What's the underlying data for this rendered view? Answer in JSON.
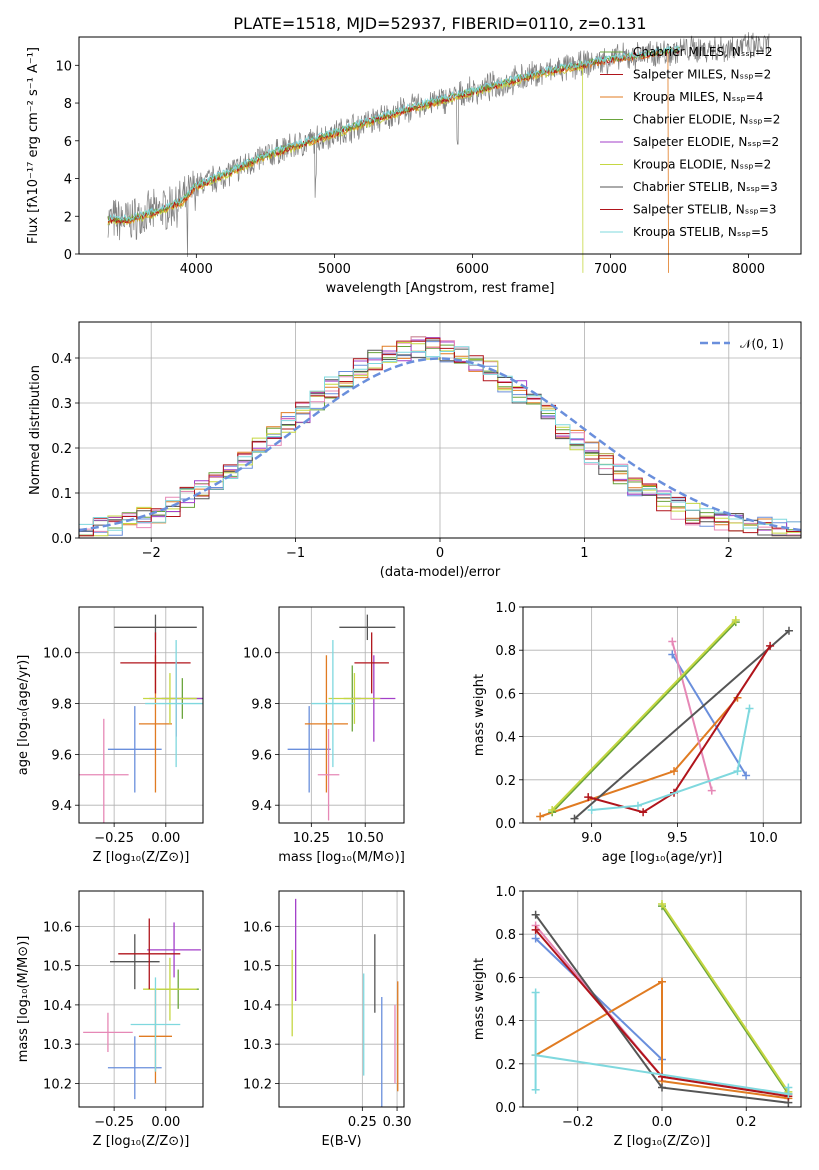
{
  "colors": {
    "blue": "#6a8fdc",
    "orange": "#e07b22",
    "green": "#6aa43c",
    "purple": "#a33fc9",
    "pink": "#e688b6",
    "yellowgreen": "#c5d742",
    "dark": "#555555",
    "red": "#b0141b",
    "cyan": "#7fd8de",
    "gray": "#808080",
    "grid": "#b0b0b0"
  },
  "chart_data": [
    {
      "id": "spectrum",
      "type": "line",
      "title": "PLATE=1518, MJD=52937, FIBERID=0110, z=0.131",
      "xlabel": "wavelength [Angstrom, rest frame]",
      "ylabel": "Flux [fλ10⁻¹⁷ erg cm⁻² s⁻¹ A⁻¹]",
      "xlim": [
        3150,
        8380
      ],
      "ylim": [
        0,
        11.5
      ],
      "xticks": [
        "4000",
        "5000",
        "6000",
        "7000",
        "8000"
      ],
      "yticks": [
        "0",
        "2",
        "4",
        "6",
        "8",
        "10"
      ],
      "legend": [
        "Chabrier MILES, Nₛₛₚ=2",
        "Salpeter MILES, Nₛₛₚ=2",
        "Kroupa MILES, Nₛₛₚ=4",
        "Chabrier ELODIE, Nₛₛₚ=2",
        "Salpeter ELODIE, Nₛₛₚ=2",
        "Kroupa ELODIE, Nₛₛₚ=2",
        "Chabrier STELIB, Nₛₛₚ=3",
        "Salpeter STELIB, Nₛₛₚ=3",
        "Kroupa STELIB, Nₛₛₚ=5"
      ],
      "continuum": {
        "x": [
          3360,
          3500,
          3700,
          3900,
          4000,
          4200,
          4500,
          5000,
          5500,
          6000,
          6500,
          7000,
          7500,
          8000,
          8150
        ],
        "y": [
          1.8,
          1.8,
          2.2,
          2.8,
          3.6,
          4.2,
          5.2,
          6.4,
          7.6,
          8.6,
          9.6,
          10.3,
          10.8,
          11.0,
          11.0
        ]
      }
    },
    {
      "id": "residuals",
      "type": "histogram",
      "xlabel": "(data-model)/error",
      "ylabel": "Normed distribution",
      "xlim": [
        -2.5,
        2.5
      ],
      "ylim": [
        0,
        0.48
      ],
      "xticks": [
        "−2",
        "−1",
        "0",
        "1",
        "2"
      ],
      "yticks": [
        "0.0",
        "0.1",
        "0.2",
        "0.3",
        "0.4"
      ],
      "legend": [
        "𝒩(0, 1)"
      ],
      "bin_width": 0.1
    },
    {
      "id": "z-age",
      "type": "scatter",
      "xlabel": "Z [log₁₀(Z/Z⊙)]",
      "ylabel": "age  [log₁₀(age/yr)]",
      "xlim": [
        -0.42,
        0.18
      ],
      "ylim": [
        9.33,
        10.18
      ],
      "xticks": [
        "−0.25",
        "0.00"
      ],
      "yticks": [
        "9.4",
        "9.6",
        "9.8",
        "10.0"
      ],
      "points": [
        {
          "c": "blue",
          "x": -0.15,
          "y": 9.62,
          "xe": 0.13,
          "ye": 0.17
        },
        {
          "c": "orange",
          "x": -0.05,
          "y": 9.72,
          "xe": 0.08,
          "ye": 0.27
        },
        {
          "c": "green",
          "x": 0.08,
          "y": 9.82,
          "xe": 0.1,
          "ye": 0.08
        },
        {
          "c": "purple",
          "x": 0.05,
          "y": 9.82,
          "xe": 0.13,
          "ye": 0.15
        },
        {
          "c": "pink",
          "x": -0.3,
          "y": 9.52,
          "xe": 0.12,
          "ye": 0.22
        },
        {
          "c": "yellowgreen",
          "x": 0.02,
          "y": 9.82,
          "xe": 0.13,
          "ye": 0.1
        },
        {
          "c": "dark",
          "x": -0.05,
          "y": 10.1,
          "xe": 0.2,
          "ye": 0.05
        },
        {
          "c": "red",
          "x": -0.05,
          "y": 9.96,
          "xe": 0.17,
          "ye": 0.12
        },
        {
          "c": "cyan",
          "x": 0.05,
          "y": 9.8,
          "xe": 0.15,
          "ye": 0.25
        }
      ]
    },
    {
      "id": "mass-age",
      "type": "scatter",
      "xlabel": "mass [log₁₀(M/M⊙)]",
      "ylabel": "",
      "xlim": [
        10.1,
        10.68
      ],
      "ylim": [
        9.33,
        10.18
      ],
      "xticks": [
        "10.25",
        "10.50"
      ],
      "yticks": [
        "9.4",
        "9.6",
        "9.8",
        "10.0"
      ],
      "points": [
        {
          "c": "blue",
          "x": 10.24,
          "y": 9.62,
          "xe": 0.1,
          "ye": 0.17
        },
        {
          "c": "orange",
          "x": 10.32,
          "y": 9.72,
          "xe": 0.1,
          "ye": 0.27
        },
        {
          "c": "green",
          "x": 10.44,
          "y": 9.82,
          "xe": 0.04,
          "ye": 0.13
        },
        {
          "c": "purple",
          "x": 10.54,
          "y": 9.82,
          "xe": 0.1,
          "ye": 0.17
        },
        {
          "c": "pink",
          "x": 10.33,
          "y": 9.52,
          "xe": 0.05,
          "ye": 0.18
        },
        {
          "c": "yellowgreen",
          "x": 10.45,
          "y": 9.82,
          "xe": 0.12,
          "ye": 0.1
        },
        {
          "c": "dark",
          "x": 10.51,
          "y": 10.1,
          "xe": 0.13,
          "ye": 0.05
        },
        {
          "c": "red",
          "x": 10.53,
          "y": 9.96,
          "xe": 0.08,
          "ye": 0.12
        },
        {
          "c": "cyan",
          "x": 10.35,
          "y": 9.8,
          "xe": 0.1,
          "ye": 0.25
        }
      ]
    },
    {
      "id": "age-weight",
      "type": "line",
      "xlabel": "age  [log₁₀(age/yr)]",
      "ylabel": "mass weight",
      "xlim": [
        8.6,
        10.22
      ],
      "ylim": [
        0,
        1.0
      ],
      "xticks": [
        "9.0",
        "9.5",
        "10.0"
      ],
      "yticks": [
        "0.0",
        "0.2",
        "0.4",
        "0.6",
        "0.8",
        "1.0"
      ],
      "series": [
        {
          "c": "blue",
          "x": [
            9.47,
            9.9
          ],
          "y": [
            0.78,
            0.22
          ]
        },
        {
          "c": "orange",
          "x": [
            8.7,
            9.48,
            9.85
          ],
          "y": [
            0.03,
            0.24,
            0.58
          ]
        },
        {
          "c": "pink",
          "x": [
            9.47,
            9.7
          ],
          "y": [
            0.84,
            0.15
          ]
        },
        {
          "c": "green",
          "x": [
            8.77,
            9.84
          ],
          "y": [
            0.05,
            0.93
          ]
        },
        {
          "c": "yellowgreen",
          "x": [
            8.77,
            9.84
          ],
          "y": [
            0.06,
            0.94
          ]
        },
        {
          "c": "dark",
          "x": [
            8.9,
            10.15
          ],
          "y": [
            0.02,
            0.89
          ]
        },
        {
          "c": "red",
          "x": [
            8.98,
            9.3,
            9.48,
            10.04
          ],
          "y": [
            0.12,
            0.05,
            0.14,
            0.82
          ]
        },
        {
          "c": "cyan",
          "x": [
            9.0,
            9.27,
            9.85,
            9.92
          ],
          "y": [
            0.06,
            0.08,
            0.24,
            0.53
          ]
        }
      ]
    },
    {
      "id": "z-mass",
      "type": "scatter",
      "xlabel": "Z [log₁₀(Z/Z⊙)]",
      "ylabel": "mass [log₁₀(M/M⊙)]",
      "xlim": [
        -0.42,
        0.18
      ],
      "ylim": [
        10.14,
        10.69
      ],
      "xticks": [
        "−0.25",
        "0.00"
      ],
      "yticks": [
        "10.2",
        "10.3",
        "10.4",
        "10.5",
        "10.6"
      ],
      "points": [
        {
          "c": "blue",
          "x": -0.15,
          "y": 10.24,
          "xe": 0.13,
          "ye": 0.08
        },
        {
          "c": "orange",
          "x": -0.05,
          "y": 10.32,
          "xe": 0.08,
          "ye": 0.12
        },
        {
          "c": "green",
          "x": 0.06,
          "y": 10.44,
          "xe": 0.1,
          "ye": 0.05
        },
        {
          "c": "purple",
          "x": 0.04,
          "y": 10.54,
          "xe": 0.13,
          "ye": 0.07
        },
        {
          "c": "pink",
          "x": -0.28,
          "y": 10.33,
          "xe": 0.12,
          "ye": 0.05
        },
        {
          "c": "yellowgreen",
          "x": 0.02,
          "y": 10.44,
          "xe": 0.13,
          "ye": 0.08
        },
        {
          "c": "dark",
          "x": -0.15,
          "y": 10.51,
          "xe": 0.12,
          "ye": 0.07
        },
        {
          "c": "red",
          "x": -0.08,
          "y": 10.53,
          "xe": 0.15,
          "ye": 0.09
        },
        {
          "c": "cyan",
          "x": -0.05,
          "y": 10.35,
          "xe": 0.12,
          "ye": 0.12
        }
      ]
    },
    {
      "id": "ebv-mass",
      "type": "scatter",
      "xlabel": "E(B-V)",
      "ylabel": "",
      "xlim": [
        0.13,
        0.31
      ],
      "ylim": [
        10.14,
        10.69
      ],
      "xticks": [
        "0.25",
        "0.30"
      ],
      "yticks": [
        "10.2",
        "10.3",
        "10.4",
        "10.5",
        "10.6"
      ],
      "points": [
        {
          "c": "yellowgreen",
          "x": 0.149,
          "y": 10.43,
          "xe": 0,
          "ye": 0.11
        },
        {
          "c": "purple",
          "x": 0.154,
          "y": 10.54,
          "xe": 0,
          "ye": 0.13
        },
        {
          "c": "cyan",
          "x": 0.252,
          "y": 10.35,
          "xe": 0,
          "ye": 0.13
        },
        {
          "c": "dark",
          "x": 0.268,
          "y": 10.48,
          "xe": 0,
          "ye": 0.1
        },
        {
          "c": "blue",
          "x": 0.278,
          "y": 10.24,
          "xe": 0,
          "ye": 0.18
        },
        {
          "c": "pink",
          "x": 0.297,
          "y": 10.3,
          "xe": 0,
          "ye": 0.1
        },
        {
          "c": "orange",
          "x": 0.301,
          "y": 10.32,
          "xe": 0,
          "ye": 0.14
        }
      ]
    },
    {
      "id": "z-weight",
      "type": "line",
      "xlabel": "Z [log₁₀(Z/Z⊙)]",
      "ylabel": "mass weight",
      "xlim": [
        -0.33,
        0.33
      ],
      "ylim": [
        0,
        1.0
      ],
      "xticks": [
        "−0.2",
        "0.0",
        "0.2"
      ],
      "yticks": [
        "0.0",
        "0.2",
        "0.4",
        "0.6",
        "0.8",
        "1.0"
      ],
      "series": [
        {
          "c": "blue",
          "x": [
            -0.3,
            0.0
          ],
          "y": [
            0.78,
            0.22
          ]
        },
        {
          "c": "orange",
          "x": [
            -0.3,
            0.0,
            0.0,
            0.3
          ],
          "y": [
            0.24,
            0.58,
            0.12,
            0.04
          ]
        },
        {
          "c": "pink",
          "x": [
            -0.3,
            0.0,
            0.3
          ],
          "y": [
            0.84,
            0.14,
            0.06
          ]
        },
        {
          "c": "green",
          "x": [
            0.0,
            0.3
          ],
          "y": [
            0.93,
            0.06
          ]
        },
        {
          "c": "yellowgreen",
          "x": [
            0.0,
            0.3
          ],
          "y": [
            0.94,
            0.07
          ]
        },
        {
          "c": "dark",
          "x": [
            -0.3,
            0.0,
            0.3
          ],
          "y": [
            0.89,
            0.09,
            0.02
          ]
        },
        {
          "c": "red",
          "x": [
            -0.3,
            0.0,
            0.3
          ],
          "y": [
            0.82,
            0.14,
            0.05
          ]
        },
        {
          "c": "cyan",
          "x": [
            -0.3,
            -0.3,
            -0.3,
            0.3,
            0.3
          ],
          "y": [
            0.53,
            0.08,
            0.24,
            0.06,
            0.09
          ]
        }
      ]
    }
  ]
}
